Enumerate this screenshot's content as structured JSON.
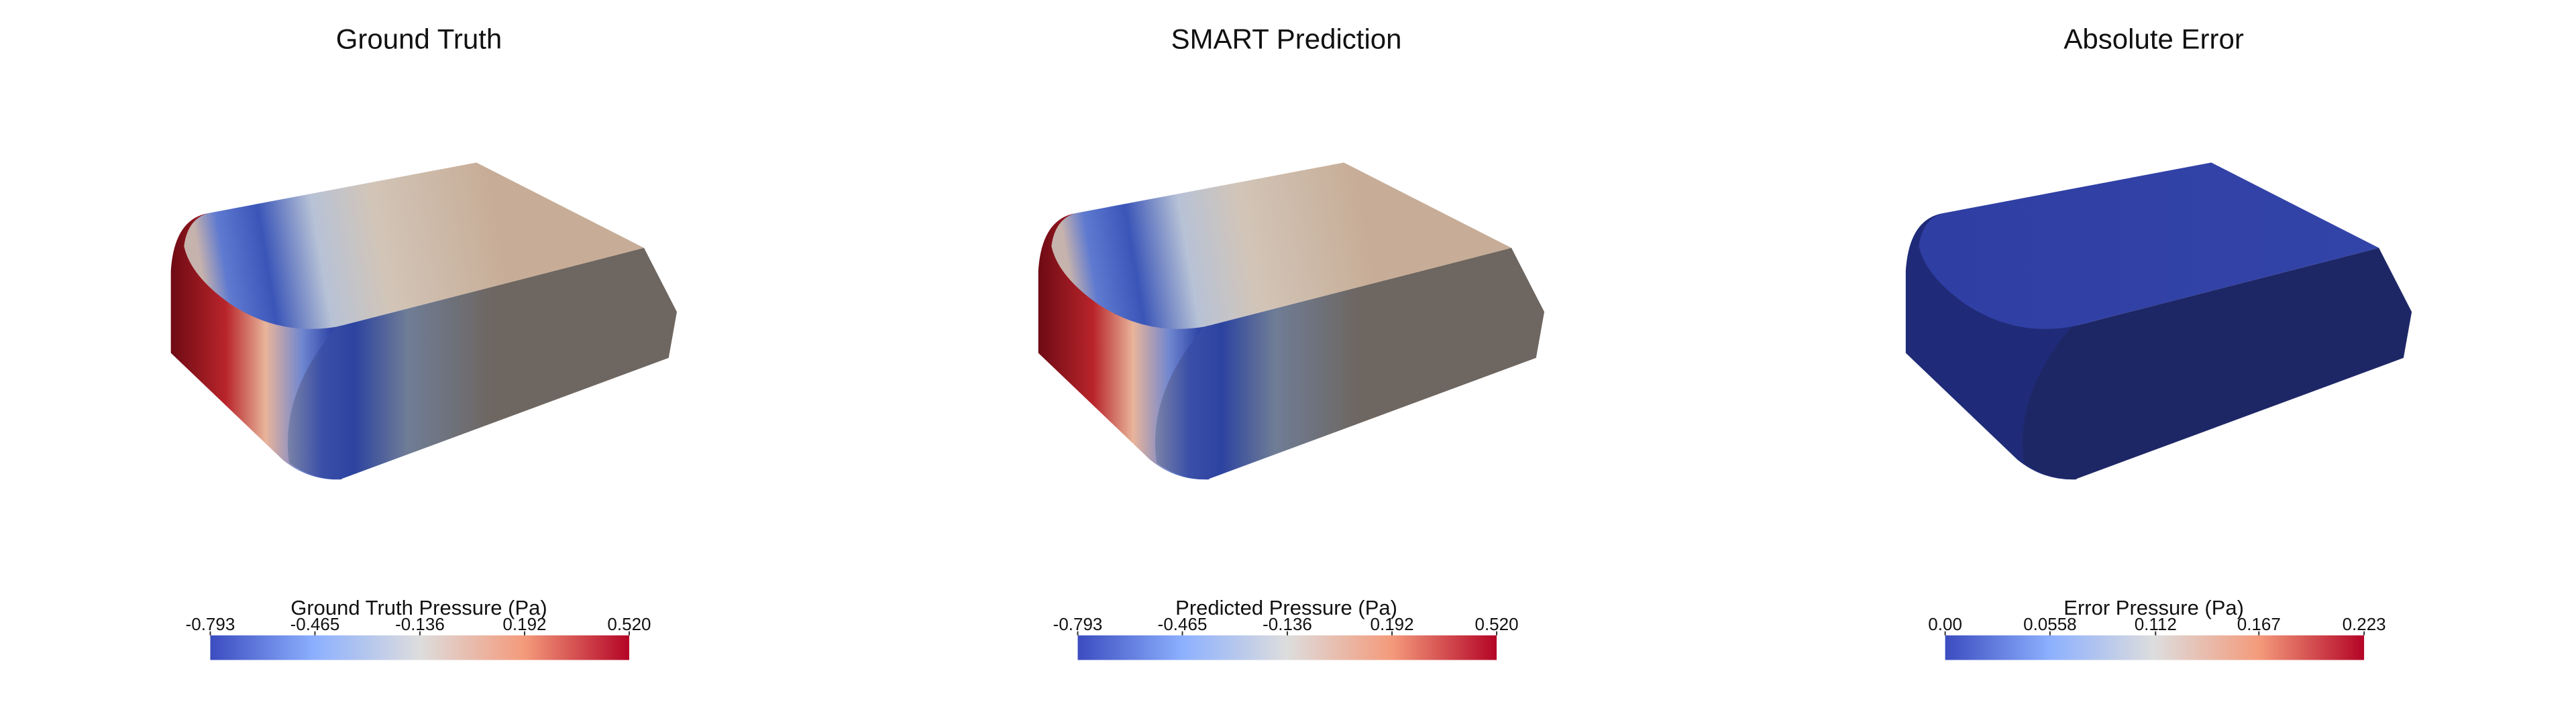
{
  "panels": [
    {
      "title": "Ground Truth",
      "colorbar": {
        "title": "Ground Truth Pressure (Pa)",
        "ticks": [
          -0.793,
          -0.465,
          -0.136,
          0.192,
          {
            "value": 0.52,
            "label": "0.520"
          }
        ]
      }
    },
    {
      "title": "SMART Prediction",
      "colorbar": {
        "title": "Predicted Pressure (Pa)",
        "ticks": [
          -0.793,
          -0.465,
          -0.136,
          0.192,
          {
            "value": 0.52,
            "label": "0.520"
          }
        ]
      }
    },
    {
      "title": "Absolute Error",
      "colorbar": {
        "title": "Error Pressure (Pa)",
        "ticks": [
          {
            "value": 0,
            "label": "0.00"
          },
          0.0558,
          0.112,
          0.167,
          0.223
        ]
      }
    }
  ]
}
